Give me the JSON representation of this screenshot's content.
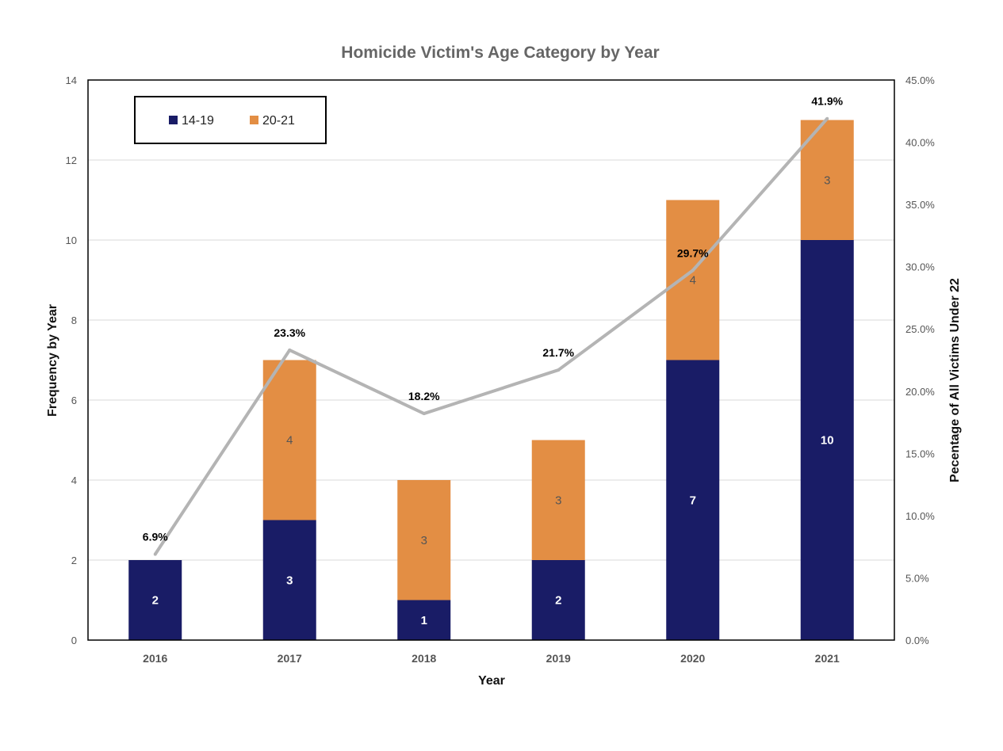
{
  "chart_data": {
    "type": "bar",
    "stacked": true,
    "title": "Homicide Victim's Age Category by Year",
    "xlabel": "Year",
    "ylabel": "Frequency by Year",
    "y2label": "Pecentage of All Victims Under 22",
    "categories": [
      "2016",
      "2017",
      "2018",
      "2019",
      "2020",
      "2021"
    ],
    "ylim": [
      0,
      14
    ],
    "yticks": [
      "0",
      "2",
      "4",
      "6",
      "8",
      "10",
      "12",
      "14"
    ],
    "y2lim": [
      0,
      45
    ],
    "y2ticks": [
      "0.0%",
      "5.0%",
      "10.0%",
      "15.0%",
      "20.0%",
      "25.0%",
      "30.0%",
      "35.0%",
      "40.0%",
      "45.0%"
    ],
    "grid": true,
    "legend_position": "top-left",
    "series": [
      {
        "name": "14-19",
        "color": "#191c66",
        "values": [
          2,
          3,
          1,
          2,
          7,
          10
        ],
        "labels": [
          "2",
          "3",
          "1",
          "2",
          "7",
          "10"
        ]
      },
      {
        "name": "20-21",
        "color": "#e38e44",
        "values": [
          0,
          4,
          3,
          3,
          4,
          3
        ],
        "labels": [
          "",
          "4",
          "3",
          "3",
          "4",
          "3"
        ]
      }
    ],
    "line_series": {
      "type": "line",
      "axis": "secondary",
      "color": "#b4b4b4",
      "values": [
        6.9,
        23.3,
        18.2,
        21.7,
        29.7,
        41.9
      ],
      "labels": [
        "6.9%",
        "23.3%",
        "18.2%",
        "21.7%",
        "29.7%",
        "41.9%"
      ]
    }
  }
}
